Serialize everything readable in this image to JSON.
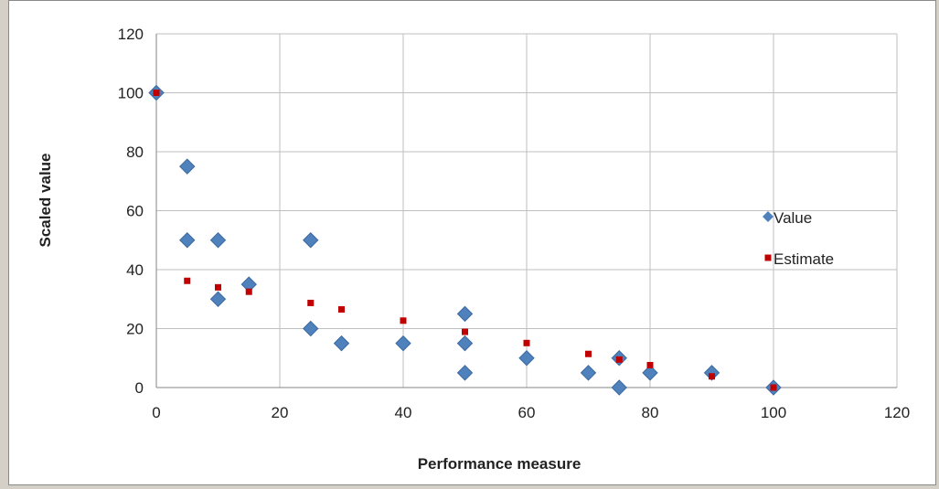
{
  "chart_data": {
    "type": "scatter",
    "title": "",
    "xlabel": "Performance measure",
    "ylabel": "Scaled value",
    "xlim": [
      0,
      120
    ],
    "ylim": [
      0,
      120
    ],
    "xticks": [
      0,
      20,
      40,
      60,
      80,
      100,
      120
    ],
    "yticks": [
      0,
      20,
      40,
      60,
      80,
      100,
      120
    ],
    "grid": true,
    "legend_position": "right",
    "series": [
      {
        "name": "Value",
        "marker": "diamond",
        "color": "#4f81bd",
        "points": [
          [
            0,
            100
          ],
          [
            5,
            75
          ],
          [
            5,
            50
          ],
          [
            10,
            50
          ],
          [
            10,
            30
          ],
          [
            15,
            35
          ],
          [
            25,
            50
          ],
          [
            25,
            20
          ],
          [
            30,
            15
          ],
          [
            40,
            15
          ],
          [
            50,
            25
          ],
          [
            50,
            15
          ],
          [
            50,
            5
          ],
          [
            60,
            10
          ],
          [
            70,
            5
          ],
          [
            75,
            10
          ],
          [
            75,
            0
          ],
          [
            80,
            5
          ],
          [
            90,
            5
          ],
          [
            100,
            0
          ]
        ]
      },
      {
        "name": "Estimate",
        "marker": "square",
        "color": "#c00000",
        "points": [
          [
            0,
            100
          ],
          [
            5,
            36.2
          ],
          [
            10,
            34
          ],
          [
            15,
            32.5
          ],
          [
            25,
            28.7
          ],
          [
            30,
            26.5
          ],
          [
            40,
            22.7
          ],
          [
            50,
            18.9
          ],
          [
            60,
            15.1
          ],
          [
            70,
            11.4
          ],
          [
            75,
            9.5
          ],
          [
            80,
            7.6
          ],
          [
            90,
            3.8
          ],
          [
            100,
            0
          ]
        ]
      }
    ]
  }
}
